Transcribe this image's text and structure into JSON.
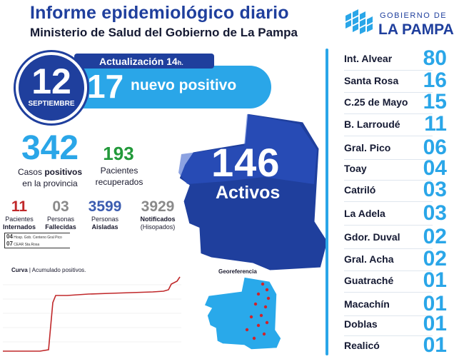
{
  "header": {
    "title": "Informe epidemiológico diario",
    "subtitle": "Ministerio de Salud del Gobierno de La Pampa"
  },
  "logo": {
    "top": "GOBIERNO DE",
    "main": "LA PAMPA"
  },
  "update": {
    "label": "Actualización 14",
    "label_suffix": "h.",
    "day": "12",
    "month": "SEPTIEMBRE",
    "new_cases": "17",
    "new_label": "nuevo positivo"
  },
  "totals": {
    "cases": "342",
    "cases_label_1a": "Casos",
    "cases_label_1b": "positivos",
    "cases_label_2": "en la provincia",
    "recovered": "193",
    "recovered_label_1": "Pacientes",
    "recovered_label_2": "recuperados",
    "active": "146",
    "active_label": "Activos"
  },
  "stats": [
    {
      "value": "11",
      "label_1": "Pacientes",
      "label_2": "Internados",
      "color": "#c0282a"
    },
    {
      "value": "03",
      "label_1": "Personas",
      "label_2": "Fallecidas",
      "color": "#8a8a8a"
    },
    {
      "value": "3599",
      "label_1": "Personas",
      "label_2": "Aisladas",
      "color": "#3b5cb0"
    },
    {
      "value": "3929",
      "label_1": "Notificados",
      "label_2": "(Hisopados)",
      "color": "#8a8a8a"
    }
  ],
  "hospital_breakdown": [
    {
      "count": "04",
      "place": "Hosp. Gob. Centeno Gral Pico"
    },
    {
      "count": "07",
      "place": "CEAR Sta.Rosa"
    }
  ],
  "curve": {
    "title_bold": "Curva",
    "title_rest": " | Acumulado positivos."
  },
  "geo": {
    "title": "Georeferencia"
  },
  "localities": [
    {
      "name": "Int. Alvear",
      "value": "80"
    },
    {
      "name": "Santa Rosa",
      "value": "16"
    },
    {
      "name": "C.25 de Mayo",
      "value": "15"
    },
    {
      "name": "B. Larroudé",
      "value": "11"
    },
    {
      "name": "Gral. Pico",
      "value": "06"
    },
    {
      "name": "Toay",
      "value": "04"
    },
    {
      "name": "Catriló",
      "value": "03"
    },
    {
      "name": "La Adela",
      "value": "03"
    },
    {
      "name": "Gdor. Duval",
      "value": "02"
    },
    {
      "name": "Gral. Acha",
      "value": "02"
    },
    {
      "name": "Guatraché",
      "value": "01"
    },
    {
      "name": "Macachín",
      "value": "01"
    },
    {
      "name": "Doblas",
      "value": "01"
    },
    {
      "name": "Realicó",
      "value": "01"
    }
  ],
  "colors": {
    "navy": "#1f3f9d",
    "sky": "#2aa6e8",
    "green": "#22993a",
    "red": "#c0282a"
  }
}
